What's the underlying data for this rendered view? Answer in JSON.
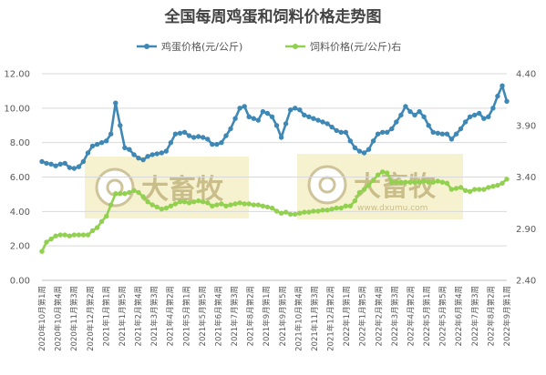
{
  "chart_data": {
    "type": "line",
    "title": "全国每周鸡蛋和饲料价格走势图",
    "legend_position": "top",
    "grid": true,
    "y_left": {
      "lim": [
        0,
        12
      ],
      "ticks": [
        "0.00",
        "2.00",
        "4.00",
        "6.00",
        "8.00",
        "10.00",
        "12.00"
      ]
    },
    "y_right": {
      "lim": [
        2.4,
        4.4
      ],
      "ticks": [
        "2.40",
        "2.90",
        "3.40",
        "3.90",
        "4.40"
      ]
    },
    "x_tick_labels": [
      "2020年10月第1周",
      "2020年10月第4周",
      "2020年11月第3周",
      "2020年12月第2周",
      "2021年1月第1周",
      "2021年1月第5周",
      "2021年2月第4周",
      "2021年3月第3周",
      "2021年4月第2周",
      "2021年5月第1周",
      "2021年5月第5周",
      "2021年6月第4周",
      "2021年7月第3周",
      "2021年8月第2周",
      "2021年9月第1周",
      "2021年9月第5周",
      "2021年10月第4周",
      "2021年11月第3周",
      "2021年12月第2周",
      "2022年1月第1周",
      "2022年1月第5周",
      "2022年2月第4周",
      "2022年3月第3周",
      "2022年4月第2周",
      "2022年5月第1周",
      "2022年5月第5周",
      "2022年6月第4周",
      "2022年7月第3周",
      "2022年8月第2周",
      "2022年9月第1周"
    ],
    "series": [
      {
        "name": "鸡蛋价格(元/公斤)",
        "axis": "left",
        "color": "#3f88b5",
        "values": [
          6.9,
          6.8,
          6.75,
          6.65,
          6.75,
          6.8,
          6.55,
          6.5,
          6.6,
          6.9,
          7.4,
          7.8,
          7.9,
          8.0,
          8.1,
          8.5,
          10.3,
          9.0,
          7.7,
          7.6,
          7.3,
          7.1,
          7.0,
          7.2,
          7.3,
          7.35,
          7.4,
          7.5,
          8.0,
          8.5,
          8.55,
          8.6,
          8.4,
          8.3,
          8.35,
          8.3,
          8.2,
          7.9,
          7.9,
          8.0,
          8.4,
          8.8,
          9.4,
          10.0,
          10.1,
          9.5,
          9.4,
          9.3,
          9.8,
          9.7,
          9.5,
          9.0,
          8.3,
          9.1,
          9.9,
          10.0,
          9.9,
          9.6,
          9.5,
          9.4,
          9.3,
          9.2,
          9.1,
          8.9,
          8.7,
          8.6,
          8.6,
          8.1,
          7.7,
          7.5,
          7.4,
          7.6,
          8.1,
          8.5,
          8.6,
          8.6,
          8.8,
          9.2,
          9.6,
          10.1,
          9.8,
          9.6,
          9.8,
          9.5,
          9.0,
          8.6,
          8.55,
          8.5,
          8.5,
          8.2,
          8.5,
          8.8,
          9.2,
          9.5,
          9.6,
          9.7,
          9.4,
          9.5,
          10.0,
          10.7,
          11.3,
          10.4
        ]
      },
      {
        "name": "饲料价格(元/公斤)右",
        "axis": "right",
        "color": "#92d050",
        "values": [
          2.68,
          2.77,
          2.8,
          2.83,
          2.84,
          2.84,
          2.83,
          2.84,
          2.84,
          2.84,
          2.84,
          2.88,
          2.91,
          2.97,
          3.02,
          3.13,
          3.24,
          3.24,
          3.24,
          3.25,
          3.27,
          3.25,
          3.21,
          3.16,
          3.13,
          3.11,
          3.09,
          3.1,
          3.12,
          3.14,
          3.16,
          3.16,
          3.15,
          3.16,
          3.17,
          3.16,
          3.15,
          3.12,
          3.13,
          3.14,
          3.12,
          3.13,
          3.14,
          3.15,
          3.14,
          3.14,
          3.13,
          3.13,
          3.12,
          3.11,
          3.1,
          3.07,
          3.05,
          3.06,
          3.04,
          3.04,
          3.05,
          3.06,
          3.06,
          3.07,
          3.07,
          3.08,
          3.08,
          3.09,
          3.1,
          3.1,
          3.12,
          3.12,
          3.17,
          3.25,
          3.28,
          3.32,
          3.37,
          3.42,
          3.45,
          3.44,
          3.35,
          3.35,
          3.35,
          3.35,
          3.35,
          3.35,
          3.35,
          3.36,
          3.35,
          3.35,
          3.36,
          3.35,
          3.34,
          3.28,
          3.29,
          3.3,
          3.27,
          3.26,
          3.28,
          3.28,
          3.28,
          3.3,
          3.31,
          3.32,
          3.34,
          3.38
        ]
      }
    ]
  },
  "watermarks": [
    {
      "text": "大畜牧",
      "url": ""
    },
    {
      "text": "大畜牧",
      "url": "www.dxumu.com"
    }
  ]
}
